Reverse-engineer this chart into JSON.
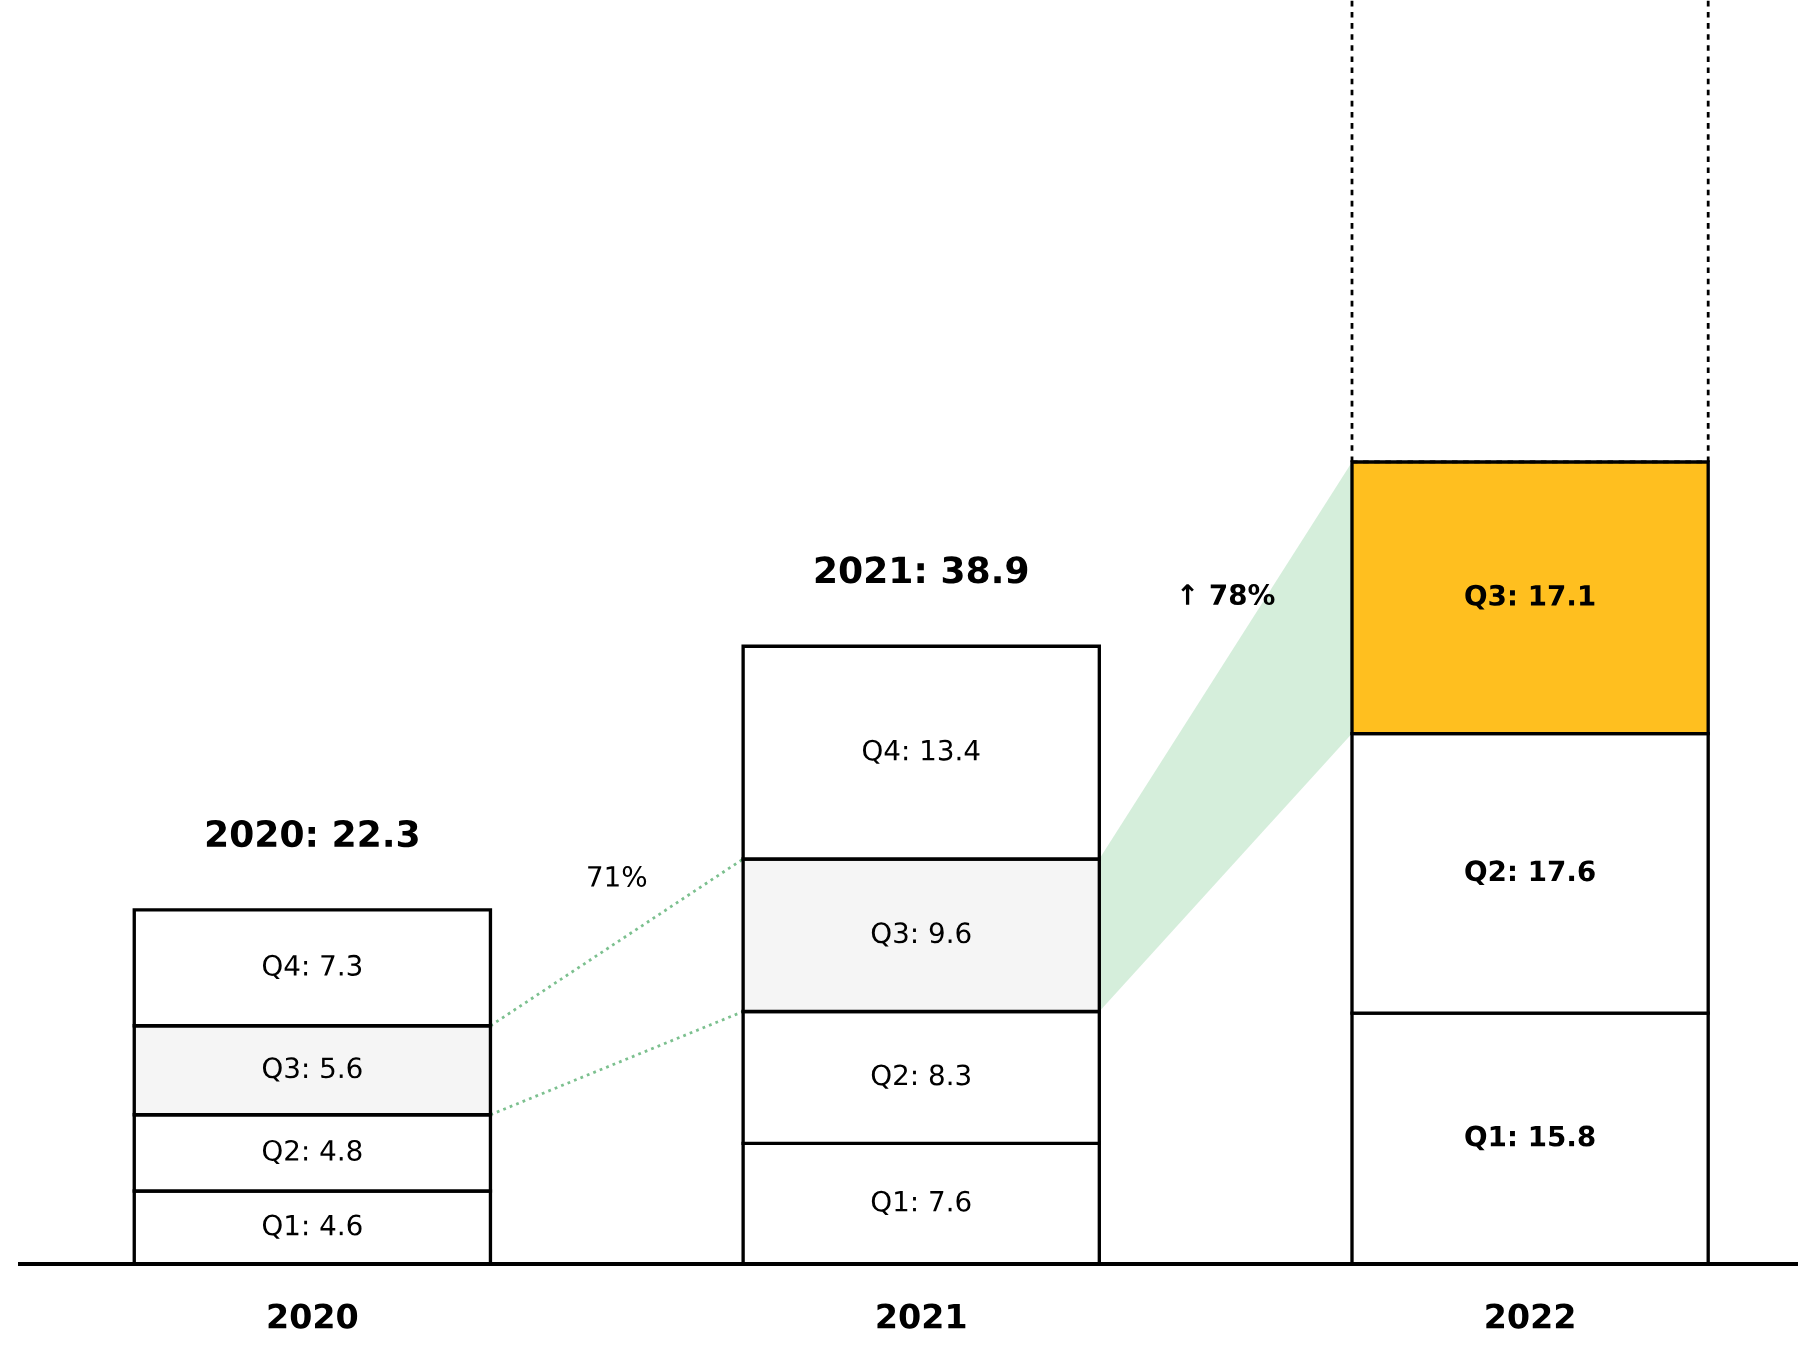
{
  "chart_data": {
    "type": "bar",
    "stacked": true,
    "categories": [
      "2020",
      "2021",
      "2022"
    ],
    "series": [
      {
        "colors": [
          "#ffffff",
          "#ffffff",
          "#ffffff"
        ],
        "values": [
          4.6,
          7.6,
          15.8
        ],
        "value_labels": [
          "Q1: 4.6",
          "Q1: 7.6",
          "Q1: 15.8"
        ]
      },
      {
        "colors": [
          "#ffffff",
          "#ffffff",
          "#ffffff"
        ],
        "values": [
          4.8,
          8.3,
          17.6
        ],
        "value_labels": [
          "Q2: 4.8",
          "Q2: 8.3",
          "Q2: 17.6"
        ]
      },
      {
        "colors": [
          "#f5f5f5",
          "#f5f5f5",
          "#ffbf1f"
        ],
        "values": [
          5.6,
          9.6,
          17.1
        ],
        "value_labels": [
          "Q3: 5.6",
          "Q3: 9.6",
          "Q3: 17.1"
        ]
      },
      {
        "colors": [
          "#ffffff",
          "#ffffff",
          "#ffffff"
        ],
        "values": [
          7.3,
          13.4,
          null
        ],
        "value_labels": [
          "Q4: 7.3",
          "Q4: 13.4",
          null
        ]
      }
    ],
    "totals": [
      "2020: 22.3",
      "2021: 38.9",
      null
    ],
    "annotations": [
      "71%",
      "↑ 78%"
    ],
    "grid": false,
    "legend": false
  }
}
